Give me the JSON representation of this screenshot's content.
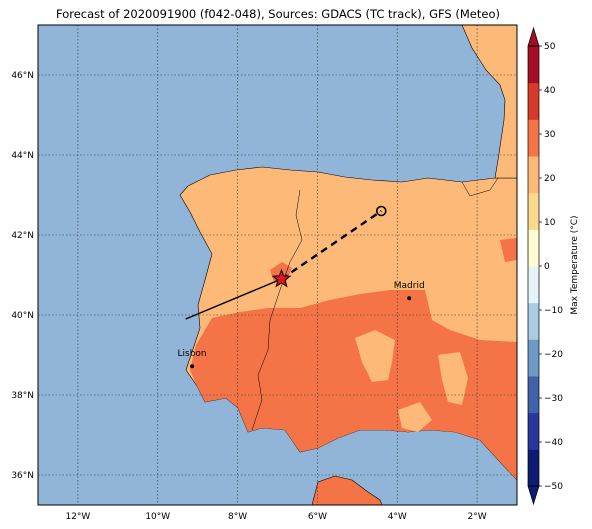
{
  "title": "Forecast of 2020091900 (f042-048), Sources: GDACS (TC track), GFS (Meteo)",
  "map": {
    "lon_range": [
      -13.0,
      -1.0
    ],
    "lat_range": [
      35.25,
      47.25
    ],
    "lon_ticks": [
      -12,
      -10,
      -8,
      -6,
      -4,
      -2
    ],
    "lon_tick_labels": [
      "12°W",
      "10°W",
      "8°W",
      "6°W",
      "4°W",
      "2°W"
    ],
    "lat_ticks": [
      36,
      38,
      40,
      42,
      44,
      46
    ],
    "lat_tick_labels": [
      "36°N",
      "38°N",
      "40°N",
      "42°N",
      "44°N",
      "46°N"
    ],
    "grid": true,
    "colors": {
      "ocean": "#91b4d9",
      "band_10_20": "#fdb977",
      "band_20_30": "#f47447"
    }
  },
  "cities": [
    {
      "name": "Madrid",
      "lon": -3.7,
      "lat": 40.42
    },
    {
      "name": "Lisbon",
      "lon": -9.14,
      "lat": 38.72
    }
  ],
  "track": {
    "past": [
      [
        -9.3,
        39.9
      ],
      [
        -6.9,
        40.9
      ]
    ],
    "forecast": [
      [
        -6.9,
        40.9
      ],
      [
        -4.4,
        42.6
      ]
    ],
    "current_position": [
      -6.9,
      40.9
    ],
    "forecast_end": [
      -4.4,
      42.6
    ]
  },
  "colorbar": {
    "label": "Max Temperature (°C)",
    "ticks": [
      "50",
      "40",
      "30",
      "20",
      "10",
      "0",
      "−10",
      "−20",
      "−30",
      "−40",
      "−50"
    ],
    "range": [
      -50,
      50
    ],
    "colors": [
      "#0d1b73",
      "#26389a",
      "#4162aa",
      "#6d9ac6",
      "#a9cce3",
      "#e6f4f8",
      "#fffbd2",
      "#fdd98e",
      "#fdb977",
      "#f47447",
      "#d63a2a",
      "#a50f26"
    ]
  }
}
